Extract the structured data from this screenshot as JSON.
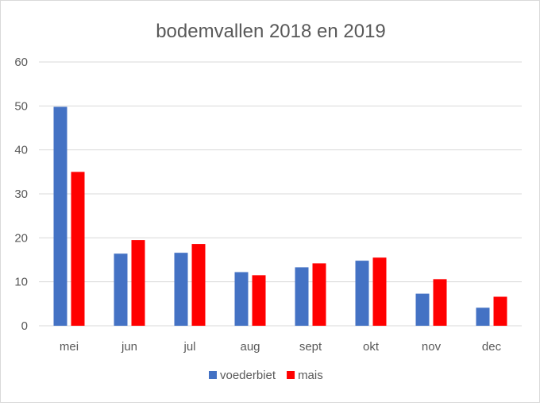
{
  "chart_data": {
    "type": "bar",
    "title": "bodemvallen 2018 en 2019",
    "xlabel": "",
    "ylabel": "",
    "categories": [
      "mei",
      "jun",
      "jul",
      "aug",
      "sept",
      "okt",
      "nov",
      "dec"
    ],
    "series": [
      {
        "name": "voederbiet",
        "color": "#4472c4",
        "values": [
          49.8,
          16.4,
          16.6,
          12.2,
          13.3,
          14.8,
          7.3,
          4.1
        ]
      },
      {
        "name": "mais",
        "color": "#ff0000",
        "values": [
          35.0,
          19.5,
          18.6,
          11.5,
          14.2,
          15.5,
          10.6,
          6.6
        ]
      }
    ],
    "ylim": [
      0,
      60
    ],
    "yticks": [
      0,
      10,
      20,
      30,
      40,
      50,
      60
    ],
    "grid": true,
    "legend": "bottom-center",
    "colors": {
      "gridline": "#d9d9d9",
      "text": "#595959"
    }
  }
}
